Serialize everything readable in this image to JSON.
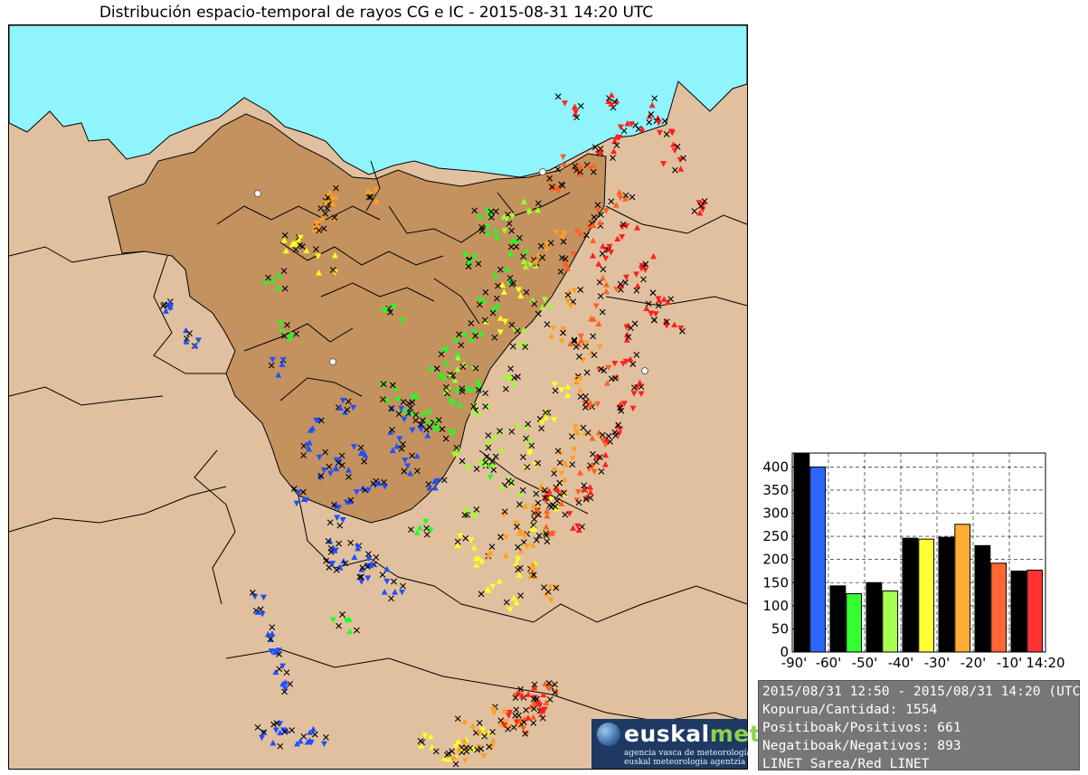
{
  "title": "Distribución espacio-temporal de rayos CG e IC - 2015-08-31 14:20 UTC",
  "colors": {
    "sea": "#8ff4fb",
    "land": "#e0c09f",
    "region": "#c4925f",
    "border": "#000000",
    "bins": [
      "#2050ff",
      "#20ff20",
      "#a0ff30",
      "#ffff20",
      "#ffa020",
      "#ff6020",
      "#ff2020"
    ],
    "ic_marker": "#000000"
  },
  "logo": {
    "brand_main": "euskal",
    "brand_accent": "met",
    "line1": "agencia vasca de meteorología",
    "line2": "euskal meteorologia agentzia"
  },
  "map_markers": {
    "legend": [
      "triangle-up = positive CG",
      "triangle-down = negative CG",
      "x = IC"
    ],
    "bins": [
      {
        "color": "blue",
        "approx_points": [
          [
            0.41,
            0.57
          ],
          [
            0.43,
            0.6
          ],
          [
            0.45,
            0.59
          ],
          [
            0.47,
            0.63
          ],
          [
            0.4,
            0.63
          ],
          [
            0.44,
            0.66
          ],
          [
            0.48,
            0.58
          ],
          [
            0.52,
            0.56
          ],
          [
            0.55,
            0.59
          ],
          [
            0.5,
            0.62
          ],
          [
            0.42,
            0.54
          ],
          [
            0.46,
            0.51
          ],
          [
            0.53,
            0.52
          ],
          [
            0.56,
            0.55
          ],
          [
            0.58,
            0.61
          ],
          [
            0.46,
            0.71
          ],
          [
            0.45,
            0.73
          ],
          [
            0.48,
            0.74
          ],
          [
            0.43,
            0.7
          ],
          [
            0.5,
            0.72
          ],
          [
            0.52,
            0.75
          ],
          [
            0.37,
            0.88
          ],
          [
            0.36,
            0.85
          ],
          [
            0.35,
            0.96
          ],
          [
            0.38,
            0.95
          ],
          [
            0.4,
            0.96
          ],
          [
            0.42,
            0.96
          ],
          [
            0.34,
            0.78
          ],
          [
            0.36,
            0.83
          ],
          [
            0.25,
            0.42
          ],
          [
            0.21,
            0.38
          ],
          [
            0.36,
            0.46
          ]
        ]
      },
      {
        "color": "green",
        "approx_points": [
          [
            0.52,
            0.49
          ],
          [
            0.55,
            0.51
          ],
          [
            0.57,
            0.53
          ],
          [
            0.59,
            0.54
          ],
          [
            0.61,
            0.5
          ],
          [
            0.63,
            0.48
          ],
          [
            0.58,
            0.46
          ],
          [
            0.6,
            0.43
          ],
          [
            0.63,
            0.41
          ],
          [
            0.65,
            0.38
          ],
          [
            0.67,
            0.34
          ],
          [
            0.69,
            0.3
          ],
          [
            0.66,
            0.28
          ],
          [
            0.64,
            0.26
          ],
          [
            0.62,
            0.31
          ],
          [
            0.36,
            0.34
          ],
          [
            0.38,
            0.41
          ],
          [
            0.52,
            0.39
          ],
          [
            0.56,
            0.68
          ],
          [
            0.45,
            0.81
          ],
          [
            0.64,
            0.6
          ]
        ]
      },
      {
        "color": "yellowgreen",
        "approx_points": [
          [
            0.6,
            0.48
          ],
          [
            0.62,
            0.45
          ],
          [
            0.64,
            0.52
          ],
          [
            0.66,
            0.56
          ],
          [
            0.65,
            0.6
          ],
          [
            0.68,
            0.62
          ],
          [
            0.7,
            0.55
          ],
          [
            0.63,
            0.65
          ],
          [
            0.61,
            0.58
          ],
          [
            0.67,
            0.48
          ],
          [
            0.69,
            0.42
          ],
          [
            0.72,
            0.38
          ],
          [
            0.7,
            0.33
          ],
          [
            0.68,
            0.27
          ],
          [
            0.71,
            0.25
          ]
        ]
      },
      {
        "color": "yellow",
        "approx_points": [
          [
            0.64,
            0.72
          ],
          [
            0.66,
            0.75
          ],
          [
            0.62,
            0.7
          ],
          [
            0.68,
            0.78
          ],
          [
            0.7,
            0.73
          ],
          [
            0.72,
            0.68
          ],
          [
            0.74,
            0.64
          ],
          [
            0.71,
            0.58
          ],
          [
            0.73,
            0.53
          ],
          [
            0.75,
            0.49
          ],
          [
            0.66,
            0.4
          ],
          [
            0.68,
            0.36
          ],
          [
            0.4,
            0.29
          ],
          [
            0.43,
            0.32
          ],
          [
            0.38,
            0.3
          ],
          [
            0.6,
            0.98
          ],
          [
            0.62,
            0.97
          ],
          [
            0.64,
            0.96
          ],
          [
            0.56,
            0.96
          ]
        ]
      },
      {
        "color": "orange",
        "approx_points": [
          [
            0.66,
            0.7
          ],
          [
            0.68,
            0.67
          ],
          [
            0.71,
            0.64
          ],
          [
            0.73,
            0.62
          ],
          [
            0.75,
            0.6
          ],
          [
            0.7,
            0.7
          ],
          [
            0.72,
            0.73
          ],
          [
            0.74,
            0.76
          ],
          [
            0.76,
            0.58
          ],
          [
            0.78,
            0.55
          ],
          [
            0.77,
            0.48
          ],
          [
            0.79,
            0.44
          ],
          [
            0.74,
            0.42
          ],
          [
            0.76,
            0.37
          ],
          [
            0.72,
            0.31
          ],
          [
            0.74,
            0.29
          ],
          [
            0.42,
            0.27
          ],
          [
            0.44,
            0.24
          ],
          [
            0.43,
            0.26
          ],
          [
            0.44,
            0.23
          ],
          [
            0.49,
            0.23
          ],
          [
            0.63,
            0.95
          ],
          [
            0.66,
            0.93
          ],
          [
            0.68,
            0.94
          ],
          [
            0.65,
            0.97
          ],
          [
            0.61,
            0.98
          ]
        ]
      },
      {
        "color": "orangered",
        "approx_points": [
          [
            0.72,
            0.66
          ],
          [
            0.74,
            0.68
          ],
          [
            0.76,
            0.64
          ],
          [
            0.78,
            0.6
          ],
          [
            0.8,
            0.56
          ],
          [
            0.79,
            0.5
          ],
          [
            0.81,
            0.47
          ],
          [
            0.77,
            0.42
          ],
          [
            0.79,
            0.39
          ],
          [
            0.81,
            0.35
          ],
          [
            0.76,
            0.32
          ],
          [
            0.78,
            0.28
          ],
          [
            0.8,
            0.26
          ],
          [
            0.83,
            0.23
          ],
          [
            0.74,
            0.22
          ],
          [
            0.76,
            0.19
          ],
          [
            0.78,
            0.2
          ],
          [
            0.69,
            0.94
          ],
          [
            0.7,
            0.91
          ],
          [
            0.72,
            0.92
          ],
          [
            0.73,
            0.89
          ]
        ]
      },
      {
        "color": "red",
        "approx_points": [
          [
            0.74,
            0.63
          ],
          [
            0.76,
            0.67
          ],
          [
            0.78,
            0.63
          ],
          [
            0.8,
            0.59
          ],
          [
            0.82,
            0.55
          ],
          [
            0.84,
            0.52
          ],
          [
            0.86,
            0.49
          ],
          [
            0.83,
            0.45
          ],
          [
            0.85,
            0.41
          ],
          [
            0.87,
            0.38
          ],
          [
            0.84,
            0.34
          ],
          [
            0.82,
            0.3
          ],
          [
            0.8,
            0.31
          ],
          [
            0.84,
            0.28
          ],
          [
            0.86,
            0.32
          ],
          [
            0.88,
            0.36
          ],
          [
            0.9,
            0.4
          ],
          [
            0.81,
            0.18
          ],
          [
            0.83,
            0.15
          ],
          [
            0.85,
            0.13
          ],
          [
            0.87,
            0.12
          ],
          [
            0.89,
            0.15
          ],
          [
            0.76,
            0.11
          ],
          [
            0.82,
            0.1
          ],
          [
            0.9,
            0.18
          ],
          [
            0.93,
            0.24
          ],
          [
            0.68,
            0.93
          ],
          [
            0.7,
            0.9
          ],
          [
            0.72,
            0.91
          ],
          [
            0.71,
            0.92
          ]
        ]
      }
    ]
  },
  "chart_data": {
    "type": "bar",
    "categories": [
      "-90'",
      "-60'",
      "-50'",
      "-40'",
      "-30'",
      "-20'",
      "-10'",
      "14:20"
    ],
    "ylim": [
      0,
      430
    ],
    "yticks": [
      0,
      50,
      100,
      150,
      200,
      250,
      300,
      350,
      400
    ],
    "bars": [
      {
        "bin": 0,
        "black": 430,
        "color_value": 400,
        "color": "#2f66ff"
      },
      {
        "bin": 1,
        "black": 143,
        "color_value": 126,
        "color": "#33ff33"
      },
      {
        "bin": 2,
        "black": 150,
        "color_value": 132,
        "color": "#a7ff4f"
      },
      {
        "bin": 3,
        "black": 246,
        "color_value": 244,
        "color": "#ffff33"
      },
      {
        "bin": 4,
        "black": 248,
        "color_value": 276,
        "color": "#ffac33"
      },
      {
        "bin": 5,
        "black": 230,
        "color_value": 192,
        "color": "#ff6633"
      },
      {
        "bin": 6,
        "black": 175,
        "color_value": 177,
        "color": "#ff3333"
      }
    ],
    "grid": true
  },
  "info": {
    "line1": "2015/08/31 12:50 - 2015/08/31 14:20 (UTC)",
    "line2": "Kopurua/Cantidad: 1554",
    "line3": "Positiboak/Positivos: 661",
    "line4": "Negatiboak/Negativos: 893",
    "line5": "LINET Sarea/Red LINET"
  }
}
